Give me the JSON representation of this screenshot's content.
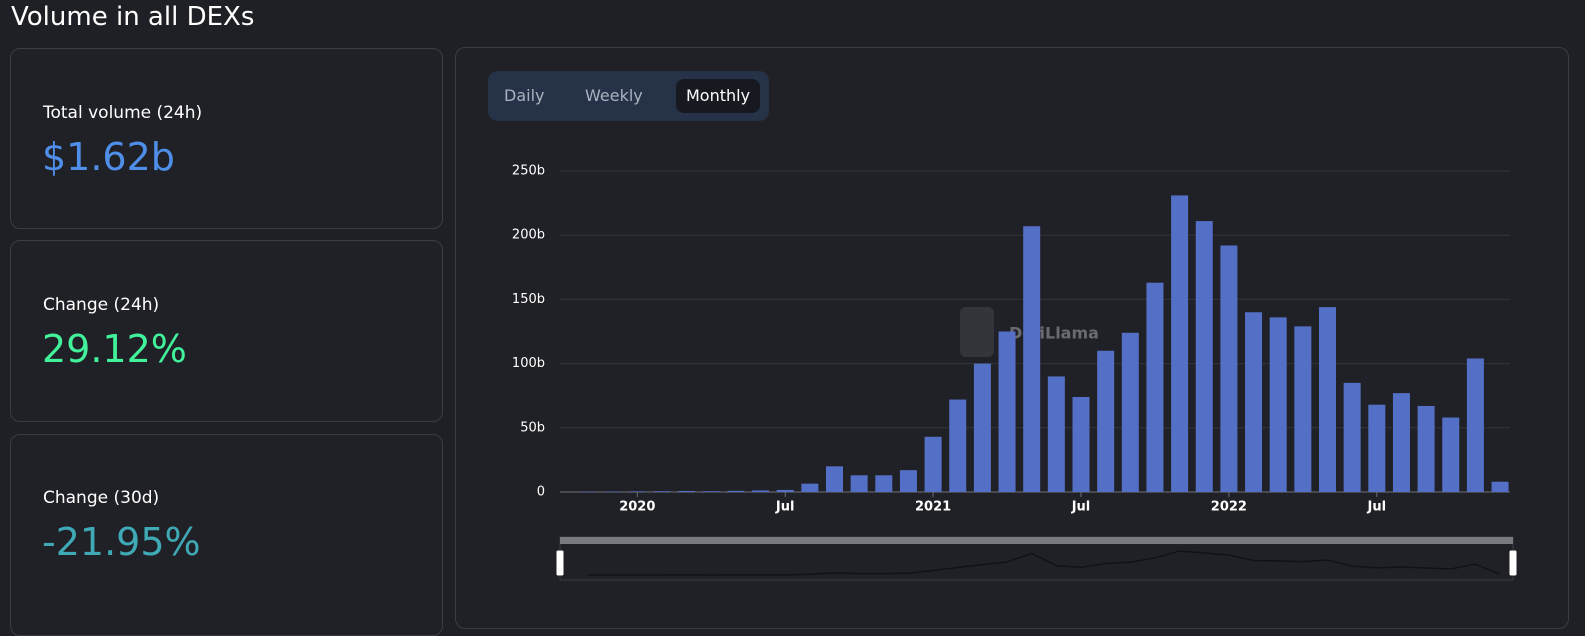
{
  "title": "Volume in all DEXs",
  "cards": [
    {
      "label": "Total volume (24h)",
      "value": "$1.62b"
    },
    {
      "label": "Change (24h)",
      "value": "29.12%"
    },
    {
      "label": "Change (30d)",
      "value": "-21.95%"
    }
  ],
  "tabs": [
    "Daily",
    "Weekly",
    "Monthly"
  ],
  "watermark": "DefiLlama",
  "chart_data": {
    "type": "bar",
    "color": "#5470c6",
    "categories": [
      null,
      null,
      "2020",
      null,
      null,
      null,
      null,
      null,
      "Jul",
      null,
      null,
      null,
      null,
      null,
      "2021",
      null,
      null,
      null,
      null,
      null,
      "Jul",
      null,
      null,
      null,
      null,
      null,
      "2022",
      null,
      null,
      null,
      null,
      null,
      "Jul",
      null,
      null,
      null,
      null,
      null
    ],
    "values": [
      0.3,
      0.4,
      0.5,
      0.6,
      0.8,
      0.6,
      0.9,
      1.2,
      1.6,
      6.5,
      20,
      13,
      13,
      17,
      43,
      72,
      100,
      125,
      207,
      90,
      74,
      110,
      124,
      163,
      231,
      211,
      192,
      140,
      136,
      129,
      144,
      85,
      68,
      77,
      67,
      58,
      104,
      8
    ],
    "ylim": [
      0,
      250
    ],
    "yticks": [
      0,
      {
        "value": 50,
        "label": "50b"
      },
      {
        "value": 100,
        "label": "100b"
      },
      {
        "value": 150,
        "label": "150b"
      },
      {
        "value": 200,
        "label": "200b"
      },
      {
        "value": 250,
        "label": "250b"
      }
    ],
    "grid": true
  }
}
